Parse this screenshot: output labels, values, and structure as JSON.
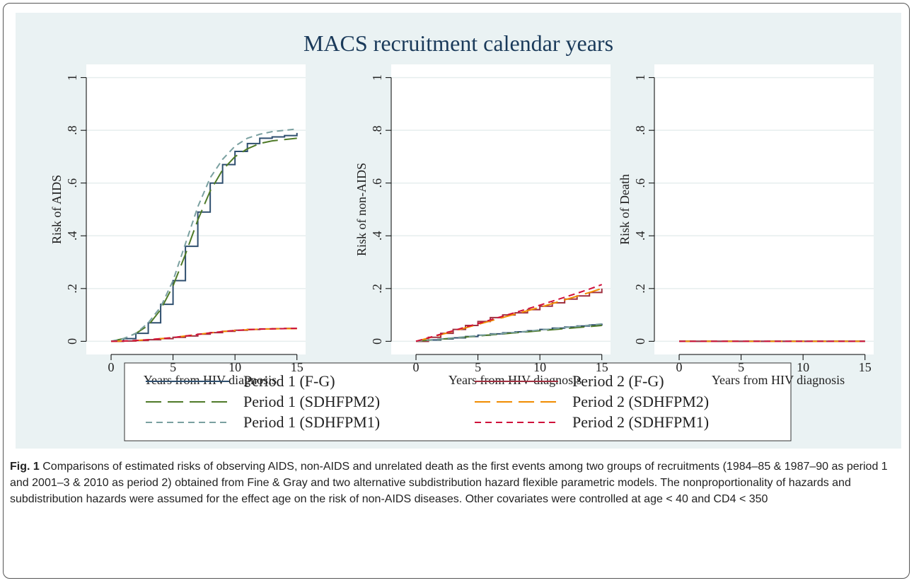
{
  "chart_data": {
    "type": "line",
    "title": "MACS recruitment calendar years",
    "xlabel": "Years from HIV diagnosis",
    "x": [
      0,
      1,
      2,
      3,
      4,
      5,
      6,
      7,
      8,
      9,
      10,
      11,
      12,
      13,
      14,
      15
    ],
    "xlim": [
      -2,
      15.7
    ],
    "xticks": [
      0,
      5,
      10,
      15
    ],
    "ylim": [
      -0.05,
      1.05
    ],
    "yticks": [
      0,
      {
        "value": 0.2,
        "label": ".2"
      },
      {
        "value": 0.4,
        "label": ".4"
      },
      {
        "value": 0.6,
        "label": ".6"
      },
      {
        "value": 0.8,
        "label": ".8"
      },
      1
    ],
    "grid": true,
    "series": [
      {
        "name": "Period 1 (F-G)",
        "color": "#2f4f6f",
        "dash": "solid",
        "step": true
      },
      {
        "name": "Period 2 (F-G)",
        "color": "#a03040",
        "dash": "solid",
        "step": true
      },
      {
        "name": "Period 1 (SDHFPM2)",
        "color": "#4f7a28",
        "dash": "long"
      },
      {
        "name": "Period 2 (SDHFPM2)",
        "color": "#f08c00",
        "dash": "long"
      },
      {
        "name": "Period 1 (SDHFPM1)",
        "color": "#7aa0a0",
        "dash": "short"
      },
      {
        "name": "Period 2 (SDHFPM1)",
        "color": "#d0103a",
        "dash": "short"
      }
    ],
    "panels": [
      {
        "ylabel": "Risk of AIDS",
        "values": [
          [
            0,
            0.01,
            0.03,
            0.07,
            0.14,
            0.23,
            0.36,
            0.49,
            0.6,
            0.67,
            0.72,
            0.75,
            0.77,
            0.775,
            0.78,
            0.79
          ],
          [
            0,
            0.001,
            0.003,
            0.006,
            0.01,
            0.015,
            0.02,
            0.027,
            0.033,
            0.038,
            0.042,
            0.045,
            0.047,
            0.048,
            0.049,
            0.049
          ],
          [
            0,
            0.01,
            0.03,
            0.06,
            0.12,
            0.21,
            0.33,
            0.46,
            0.57,
            0.65,
            0.7,
            0.73,
            0.75,
            0.76,
            0.765,
            0.77
          ],
          [
            0,
            0.001,
            0.003,
            0.006,
            0.01,
            0.014,
            0.02,
            0.026,
            0.032,
            0.037,
            0.041,
            0.044,
            0.046,
            0.047,
            0.048,
            0.048
          ],
          [
            0,
            0.01,
            0.03,
            0.07,
            0.13,
            0.23,
            0.37,
            0.51,
            0.62,
            0.69,
            0.74,
            0.77,
            0.785,
            0.795,
            0.8,
            0.805
          ],
          [
            0,
            0.001,
            0.003,
            0.006,
            0.01,
            0.014,
            0.02,
            0.026,
            0.032,
            0.037,
            0.041,
            0.044,
            0.046,
            0.047,
            0.048,
            0.049
          ]
        ]
      },
      {
        "ylabel": "Risk of non-AIDS",
        "values": [
          [
            0,
            0.005,
            0.009,
            0.013,
            0.018,
            0.023,
            0.028,
            0.032,
            0.036,
            0.04,
            0.045,
            0.05,
            0.054,
            0.058,
            0.062,
            0.067
          ],
          [
            0,
            0.015,
            0.03,
            0.045,
            0.06,
            0.075,
            0.09,
            0.1,
            0.108,
            0.12,
            0.133,
            0.146,
            0.16,
            0.172,
            0.185,
            0.2
          ],
          [
            0,
            0.004,
            0.008,
            0.012,
            0.016,
            0.02,
            0.024,
            0.028,
            0.032,
            0.036,
            0.04,
            0.044,
            0.048,
            0.052,
            0.056,
            0.06
          ],
          [
            0,
            0.012,
            0.025,
            0.038,
            0.051,
            0.064,
            0.077,
            0.09,
            0.103,
            0.116,
            0.129,
            0.143,
            0.157,
            0.171,
            0.185,
            0.2
          ],
          [
            0,
            0.005,
            0.009,
            0.013,
            0.017,
            0.022,
            0.026,
            0.03,
            0.034,
            0.038,
            0.043,
            0.047,
            0.052,
            0.056,
            0.061,
            0.066
          ],
          [
            0,
            0.013,
            0.027,
            0.04,
            0.054,
            0.067,
            0.081,
            0.095,
            0.109,
            0.123,
            0.137,
            0.152,
            0.167,
            0.182,
            0.198,
            0.215
          ]
        ]
      },
      {
        "ylabel": "Risk of Death",
        "values": [
          [
            0,
            0,
            0,
            0,
            0,
            0,
            0,
            0,
            0,
            0,
            0,
            0,
            0,
            0,
            0,
            0
          ],
          [
            0,
            0,
            0,
            0,
            0,
            0,
            0,
            0,
            0,
            0,
            0,
            0,
            0,
            0,
            0,
            0
          ],
          [
            0,
            0,
            0,
            0,
            0,
            0,
            0,
            0,
            0,
            0,
            0,
            0,
            0,
            0,
            0,
            0
          ],
          [
            0,
            0,
            0,
            0,
            0,
            0,
            0,
            0,
            0,
            0,
            0,
            0,
            0,
            0,
            0,
            0
          ],
          [
            0,
            0,
            0,
            0,
            0,
            0,
            0,
            0,
            0,
            0,
            0,
            0,
            0,
            0,
            0,
            0
          ],
          [
            0,
            0,
            0,
            0,
            0,
            0,
            0,
            0,
            0,
            0,
            0,
            0,
            0,
            0,
            0,
            0
          ]
        ]
      }
    ]
  },
  "caption": {
    "label": "Fig. 1",
    "text": "Comparisons of estimated risks of observing AIDS, non-AIDS and unrelated death as the first events among two groups of recruitments (1984–85 & 1987–90 as period 1 and 2001–3 & 2010 as period 2) obtained from Fine & Gray and two alternative subdistribution hazard flexible parametric models. The nonproportionality of hazards and subdistribution hazards were assumed for the effect age on the risk of non-AIDS diseases. Other covariates were controlled at age < 40 and CD4 < 350"
  }
}
